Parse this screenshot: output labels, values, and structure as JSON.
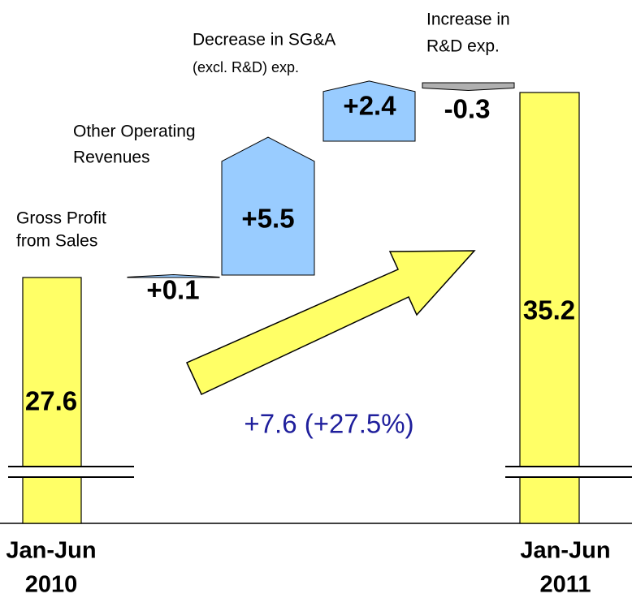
{
  "chart_data": {
    "type": "waterfall",
    "categories": [
      [
        "Jan-Jun",
        "2010"
      ],
      [
        "Gross Profit",
        "from Sales"
      ],
      [
        "Other Operating",
        "Revenues"
      ],
      [
        "Decrease in SG&A",
        "(excl. R&D) exp."
      ],
      [
        "Increase in",
        "R&D exp."
      ],
      [
        "Jan-Jun",
        "2011"
      ]
    ],
    "values": [
      27.6,
      0.1,
      5.5,
      2.4,
      -0.3,
      35.2
    ],
    "value_labels": [
      "27.6",
      "+0.1",
      "+5.5",
      "+2.4",
      "-0.3",
      "35.2"
    ],
    "measure": [
      "absolute",
      "relative",
      "relative",
      "relative",
      "relative",
      "absolute"
    ],
    "total_color": "#ffff66",
    "change_color": "#99ccff",
    "decrease_color": "#b0b0b0",
    "annotation": "+7.6 (+27.5%)"
  }
}
